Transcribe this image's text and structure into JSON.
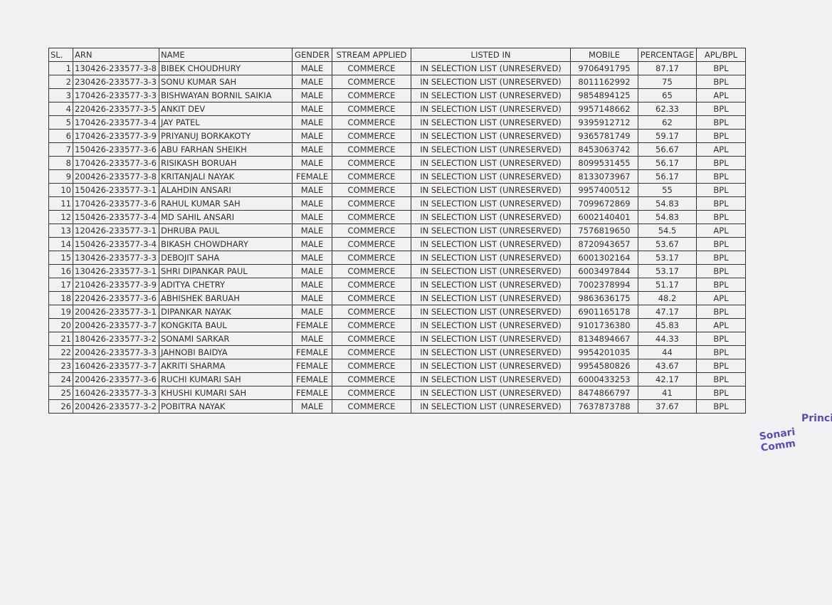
{
  "table": {
    "header": [
      "SL.",
      "ARN",
      "NAME",
      "GENDER",
      "STREAM APPLIED",
      "LISTED IN",
      "MOBILE",
      "PERCENTAGE",
      "APL/BPL"
    ],
    "rows": [
      [
        "1",
        "130426-233577-3-8",
        "BIBEK CHOUDHURY",
        "MALE",
        "COMMERCE",
        "IN SELECTION LIST (UNRESERVED)",
        "9706491795",
        "87.17",
        "BPL"
      ],
      [
        "2",
        "230426-233577-3-3",
        "SONU KUMAR SAH",
        "MALE",
        "COMMERCE",
        "IN SELECTION LIST (UNRESERVED)",
        "8011162992",
        "75",
        "BPL"
      ],
      [
        "3",
        "170426-233577-3-3",
        "BISHWAYAN BORNIL SAIKIA",
        "MALE",
        "COMMERCE",
        "IN SELECTION LIST (UNRESERVED)",
        "9854894125",
        "65",
        "APL"
      ],
      [
        "4",
        "220426-233577-3-5",
        "ANKIT DEV",
        "MALE",
        "COMMERCE",
        "IN SELECTION LIST (UNRESERVED)",
        "9957148662",
        "62.33",
        "BPL"
      ],
      [
        "5",
        "170426-233577-3-4",
        "JAY PATEL",
        "MALE",
        "COMMERCE",
        "IN SELECTION LIST (UNRESERVED)",
        "9395912712",
        "62",
        "BPL"
      ],
      [
        "6",
        "170426-233577-3-9",
        "PRIYANUJ BORKAKOTY",
        "MALE",
        "COMMERCE",
        "IN SELECTION LIST (UNRESERVED)",
        "9365781749",
        "59.17",
        "BPL"
      ],
      [
        "7",
        "150426-233577-3-6",
        "ABU FARHAN SHEIKH",
        "MALE",
        "COMMERCE",
        "IN SELECTION LIST (UNRESERVED)",
        "8453063742",
        "56.67",
        "APL"
      ],
      [
        "8",
        "170426-233577-3-6",
        "RISIKASH BORUAH",
        "MALE",
        "COMMERCE",
        "IN SELECTION LIST (UNRESERVED)",
        "8099531455",
        "56.17",
        "BPL"
      ],
      [
        "9",
        "200426-233577-3-8",
        "KRITANJALI NAYAK",
        "FEMALE",
        "COMMERCE",
        "IN SELECTION LIST (UNRESERVED)",
        "8133073967",
        "56.17",
        "BPL"
      ],
      [
        "10",
        "150426-233577-3-1",
        "ALAHDIN ANSARI",
        "MALE",
        "COMMERCE",
        "IN SELECTION LIST (UNRESERVED)",
        "9957400512",
        "55",
        "BPL"
      ],
      [
        "11",
        "170426-233577-3-6",
        "RAHUL KUMAR SAH",
        "MALE",
        "COMMERCE",
        "IN SELECTION LIST (UNRESERVED)",
        "7099672869",
        "54.83",
        "BPL"
      ],
      [
        "12",
        "150426-233577-3-4",
        "MD SAHIL ANSARI",
        "MALE",
        "COMMERCE",
        "IN SELECTION LIST (UNRESERVED)",
        "6002140401",
        "54.83",
        "BPL"
      ],
      [
        "13",
        "120426-233577-3-1",
        "DHRUBA PAUL",
        "MALE",
        "COMMERCE",
        "IN SELECTION LIST (UNRESERVED)",
        "7576819650",
        "54.5",
        "APL"
      ],
      [
        "14",
        "150426-233577-3-4",
        "BIKASH CHOWDHARY",
        "MALE",
        "COMMERCE",
        "IN SELECTION LIST (UNRESERVED)",
        "8720943657",
        "53.67",
        "BPL"
      ],
      [
        "15",
        "130426-233577-3-3",
        "DEBOJIT SAHA",
        "MALE",
        "COMMERCE",
        "IN SELECTION LIST (UNRESERVED)",
        "6001302164",
        "53.17",
        "BPL"
      ],
      [
        "16",
        "130426-233577-3-1",
        "SHRI DIPANKAR PAUL",
        "MALE",
        "COMMERCE",
        "IN SELECTION LIST (UNRESERVED)",
        "6003497844",
        "53.17",
        "BPL"
      ],
      [
        "17",
        "210426-233577-3-9",
        "ADITYA CHETRY",
        "MALE",
        "COMMERCE",
        "IN SELECTION LIST (UNRESERVED)",
        "7002378994",
        "51.17",
        "BPL"
      ],
      [
        "18",
        "220426-233577-3-6",
        "ABHISHEK BARUAH",
        "MALE",
        "COMMERCE",
        "IN SELECTION LIST (UNRESERVED)",
        "9863636175",
        "48.2",
        "APL"
      ],
      [
        "19",
        "200426-233577-3-1",
        "DIPANKAR NAYAK",
        "MALE",
        "COMMERCE",
        "IN SELECTION LIST (UNRESERVED)",
        "6901165178",
        "47.17",
        "BPL"
      ],
      [
        "20",
        "200426-233577-3-7",
        "KONGKITA BAUL",
        "FEMALE",
        "COMMERCE",
        "IN SELECTION LIST (UNRESERVED)",
        "9101736380",
        "45.83",
        "APL"
      ],
      [
        "21",
        "180426-233577-3-2",
        "SONAMI SARKAR",
        "MALE",
        "COMMERCE",
        "IN SELECTION LIST (UNRESERVED)",
        "8134894667",
        "44.33",
        "BPL"
      ],
      [
        "22",
        "200426-233577-3-3",
        "JAHNOBI BAIDYA",
        "FEMALE",
        "COMMERCE",
        "IN SELECTION LIST (UNRESERVED)",
        "9954201035",
        "44",
        "BPL"
      ],
      [
        "23",
        "160426-233577-3-7",
        "AKRITI SHARMA",
        "FEMALE",
        "COMMERCE",
        "IN SELECTION LIST (UNRESERVED)",
        "9954580826",
        "43.67",
        "BPL"
      ],
      [
        "24",
        "200426-233577-3-6",
        "RUCHI KUMARI SAH",
        "FEMALE",
        "COMMERCE",
        "IN SELECTION LIST (UNRESERVED)",
        "6000433253",
        "42.17",
        "BPL"
      ],
      [
        "25",
        "160426-233577-3-3",
        "KHUSHI KUMARI SAH",
        "FEMALE",
        "COMMERCE",
        "IN SELECTION LIST (UNRESERVED)",
        "8474866797",
        "41",
        "BPL"
      ],
      [
        "26",
        "200426-233577-3-2",
        "POBITRA NAYAK",
        "MALE",
        "COMMERCE",
        "IN SELECTION LIST (UNRESERVED)",
        "7637873788",
        "37.67",
        "BPL"
      ]
    ]
  },
  "stamp": {
    "line1": "Princi",
    "line2": "Sonari Comm"
  }
}
